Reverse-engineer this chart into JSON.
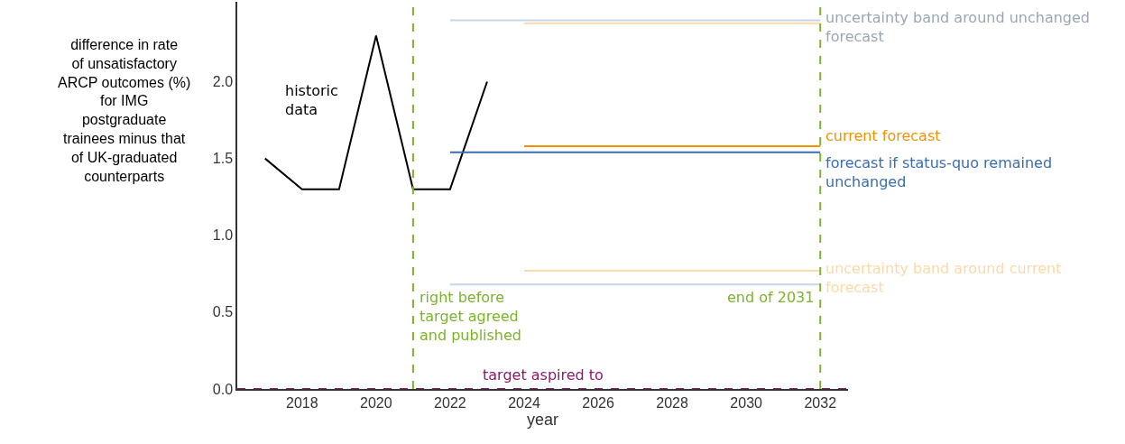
{
  "chart_data": {
    "type": "line",
    "xlabel": "year",
    "ylabel": "difference in rate\nof unsatisfactory\nARCP outcomes (%)\nfor IMG\npostgraduate\ntrainees minus that\nof UK-graduated\ncounterparts",
    "xlim": [
      2016.25,
      2032.75
    ],
    "xticks": [
      2018,
      2020,
      2022,
      2024,
      2026,
      2028,
      2030,
      2032
    ],
    "ylim": [
      0,
      2.52
    ],
    "yticks": [
      {
        "value": 0,
        "label": "0.0"
      },
      {
        "value": 0.5,
        "label": "0.5"
      },
      {
        "value": 1.0,
        "label": "1.0"
      },
      {
        "value": 1.5,
        "label": "1.5"
      },
      {
        "value": 2.0,
        "label": "2.0"
      }
    ],
    "legend": false,
    "marker": "none",
    "line_style": "solid",
    "series": [
      {
        "name": "historic data",
        "color": "#000000",
        "x": [
          2017,
          2018,
          2019,
          2020,
          2021,
          2022,
          2023
        ],
        "values": [
          1.5,
          1.3,
          1.3,
          2.3,
          1.3,
          1.3,
          2.0
        ]
      },
      {
        "name": "uncertainty band around unchanged forecast",
        "color": "#c5d5ea",
        "x": [
          2022,
          2032
        ],
        "values": [
          2.4,
          2.4
        ]
      },
      {
        "color": "#c5d5ea",
        "x": [
          2022,
          2032
        ],
        "values": [
          0.68,
          0.68
        ]
      },
      {
        "name": "current forecast",
        "color": "#f39200",
        "x": [
          2024,
          2032
        ],
        "values": [
          1.58,
          1.58
        ]
      },
      {
        "name": "forecast if status-quo remained unchanged",
        "color": "#3a6eb0",
        "x": [
          2022,
          2032
        ],
        "values": [
          1.54,
          1.54
        ]
      },
      {
        "name": "uncertainty band around current forecast",
        "color": "#fbd9a8",
        "x": [
          2024,
          2032
        ],
        "values": [
          0.77,
          0.77
        ]
      },
      {
        "color": "#fbd9a8",
        "x": [
          2024,
          2032
        ],
        "values": [
          2.38,
          2.38
        ]
      }
    ],
    "ref_lines": [
      {
        "axis": "x",
        "value": 2021,
        "label": "right before target agreed and published",
        "color": "#7cb32a",
        "line_style": "dashed"
      },
      {
        "axis": "x",
        "value": 2032,
        "label": "end of 2031",
        "color": "#7cb32a",
        "line_style": "dashed"
      },
      {
        "axis": "y",
        "value": 0,
        "label": "target aspired to",
        "color": "#8b1a6b",
        "line_style": "dashed"
      }
    ]
  }
}
